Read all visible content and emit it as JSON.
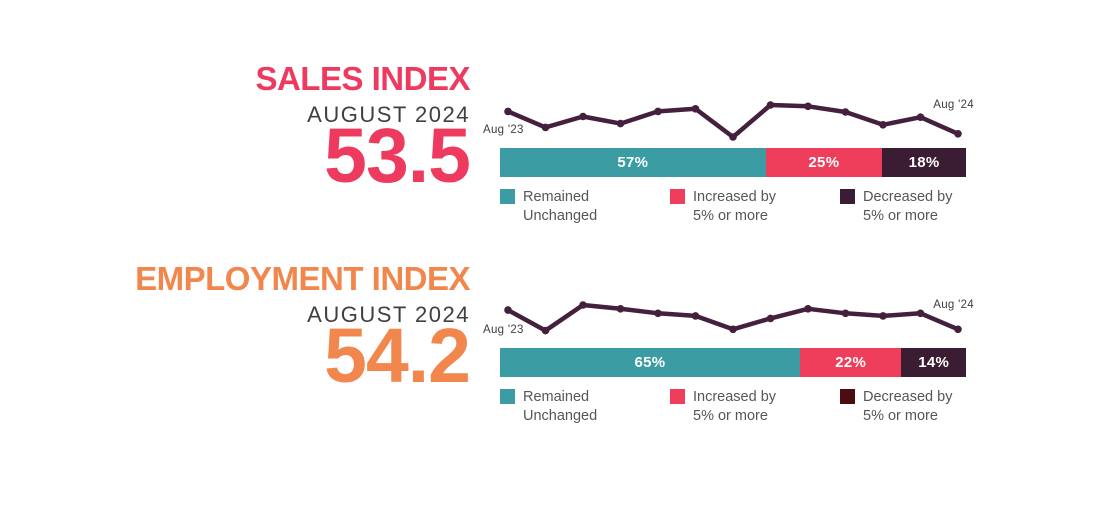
{
  "chart_data": [
    {
      "id": "sales-index",
      "type": "line+stacked-bar",
      "title": "SALES INDEX",
      "subtitle": "AUGUST 2024",
      "headline_value": "53.5",
      "accent_color": "#ee3a5e",
      "line": {
        "color": "#44203e",
        "x_start_label": "Aug '23",
        "x_end_label": "Aug '24",
        "x_range": [
          "Aug 2023",
          "Aug 2024"
        ],
        "values": [
          57.0,
          54.5,
          56.2,
          55.1,
          57.0,
          57.4,
          53.0,
          58.0,
          57.8,
          56.9,
          54.9,
          56.1,
          53.5
        ]
      },
      "bar": {
        "segments": [
          {
            "label": "57%",
            "value": 57,
            "color": "#3b9da3"
          },
          {
            "label": "25%",
            "value": 25,
            "color": "#ef3d5c"
          },
          {
            "label": "18%",
            "value": 18,
            "color": "#3a1c33"
          }
        ]
      },
      "legend": [
        {
          "lines": [
            "Remained",
            "Unchanged"
          ],
          "color": "#3b9da3"
        },
        {
          "lines": [
            "Increased by",
            "5% or more"
          ],
          "color": "#ef3d5c"
        },
        {
          "lines": [
            "Decreased by",
            "5% or more"
          ],
          "color": "#3a1c33"
        }
      ]
    },
    {
      "id": "employment-index",
      "type": "line+stacked-bar",
      "title": "EMPLOYMENT INDEX",
      "subtitle": "AUGUST 2024",
      "headline_value": "54.2",
      "accent_color": "#f2874d",
      "line": {
        "color": "#44203e",
        "x_start_label": "Aug '23",
        "x_end_label": "Aug '24",
        "x_range": [
          "Aug 2023",
          "Aug 2024"
        ],
        "values": [
          57.2,
          54.0,
          58.0,
          57.4,
          56.7,
          56.3,
          54.2,
          55.9,
          57.4,
          56.7,
          56.3,
          56.7,
          54.2
        ]
      },
      "bar": {
        "segments": [
          {
            "label": "65%",
            "value": 65,
            "color": "#3b9da3"
          },
          {
            "label": "22%",
            "value": 22,
            "color": "#ef3d5c"
          },
          {
            "label": "14%",
            "value": 14,
            "color": "#3a1c33"
          }
        ]
      },
      "legend": [
        {
          "lines": [
            "Remained",
            "Unchanged"
          ],
          "color": "#3b9da3"
        },
        {
          "lines": [
            "Increased by",
            "5% or more"
          ],
          "color": "#ef3d5c"
        },
        {
          "lines": [
            "Decreased by",
            "5% or more"
          ],
          "color": "#4c0d11"
        }
      ]
    }
  ]
}
